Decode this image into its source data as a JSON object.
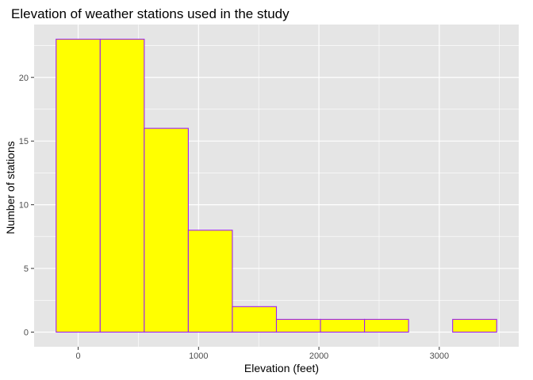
{
  "chart_data": {
    "type": "bar",
    "subtype": "histogram",
    "title": "Elevation of weather stations used in the study",
    "xlabel": "Elevation (feet)",
    "ylabel": "Number of stations",
    "bin_width": 366,
    "bins": [
      {
        "start": -183,
        "end": 183,
        "count": 23
      },
      {
        "start": 183,
        "end": 549,
        "count": 23
      },
      {
        "start": 549,
        "end": 915,
        "count": 16
      },
      {
        "start": 915,
        "end": 1281,
        "count": 8
      },
      {
        "start": 1281,
        "end": 1647,
        "count": 2
      },
      {
        "start": 1647,
        "end": 2013,
        "count": 1
      },
      {
        "start": 2013,
        "end": 2379,
        "count": 1
      },
      {
        "start": 2379,
        "end": 2745,
        "count": 1
      },
      {
        "start": 2745,
        "end": 3111,
        "count": 0
      },
      {
        "start": 3111,
        "end": 3477,
        "count": 1
      }
    ],
    "xlim": [
      -366,
      3660
    ],
    "ylim": [
      -1.15,
      24.15
    ],
    "xticks": [
      0,
      1000,
      2000,
      3000
    ],
    "yticks": [
      0,
      5,
      10,
      15,
      20
    ],
    "grid": true,
    "colors": {
      "panel": "#e5e5e5",
      "grid": "#ffffff",
      "bar_fill": "#ffff00",
      "bar_outline": "#a020f0"
    }
  }
}
